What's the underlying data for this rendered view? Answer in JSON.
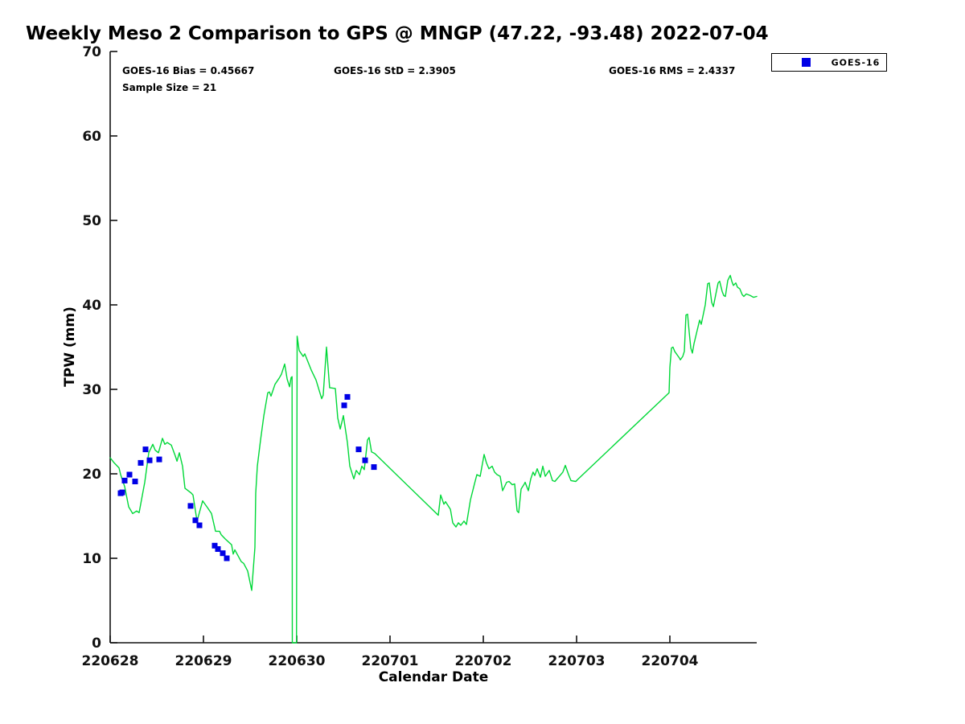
{
  "title": "Weekly Meso 2 Comparison to GPS @ MNGP (47.22, -93.48) 2022-07-04",
  "stats": {
    "bias": "GOES-16 Bias = 0.45667",
    "std": "GOES-16 StD = 2.3905",
    "rms": "GOES-16 RMS = 2.4337",
    "sample": "Sample Size = 21"
  },
  "legend": {
    "label": "GOES-16",
    "marker_color": "#0000e6",
    "position": "top-right"
  },
  "colors": {
    "gps_line": "#00d838",
    "goes16_marker": "#0000e6",
    "axis": "#111111",
    "text": "#000000"
  },
  "chart_data": {
    "type": "line",
    "title": "Weekly Meso 2 Comparison to GPS @ MNGP (47.22, -93.48) 2022-07-04",
    "xlabel": "Calendar Date",
    "ylabel": "TPW (mm)",
    "ylim": [
      0,
      70
    ],
    "yticks": [
      0,
      10,
      20,
      30,
      40,
      50,
      60,
      70
    ],
    "xtick_labels": [
      "220628",
      "220629",
      "220630",
      "220701",
      "220702",
      "220703",
      "220704"
    ],
    "xtick_days": [
      0,
      1,
      2,
      3,
      4,
      5,
      6
    ],
    "xlim_days": [
      0,
      6.931
    ],
    "grid": false,
    "legend_entries": [
      "GOES-16"
    ],
    "series": [
      {
        "name": "GPS TPW",
        "type": "line",
        "color": "#00d838",
        "points": [
          [
            0.0,
            21.9
          ],
          [
            0.043,
            21.3
          ],
          [
            0.095,
            20.7
          ],
          [
            0.112,
            19.9
          ],
          [
            0.155,
            18.5
          ],
          [
            0.198,
            16.1
          ],
          [
            0.241,
            15.3
          ],
          [
            0.284,
            15.6
          ],
          [
            0.31,
            15.4
          ],
          [
            0.371,
            19.0
          ],
          [
            0.414,
            22.5
          ],
          [
            0.457,
            23.5
          ],
          [
            0.483,
            22.8
          ],
          [
            0.517,
            22.5
          ],
          [
            0.56,
            24.2
          ],
          [
            0.586,
            23.5
          ],
          [
            0.612,
            23.7
          ],
          [
            0.655,
            23.4
          ],
          [
            0.698,
            22.1
          ],
          [
            0.716,
            21.5
          ],
          [
            0.741,
            22.5
          ],
          [
            0.776,
            20.9
          ],
          [
            0.802,
            18.3
          ],
          [
            0.871,
            17.7
          ],
          [
            0.888,
            17.5
          ],
          [
            0.931,
            14.4
          ],
          [
            0.991,
            16.8
          ],
          [
            1.043,
            16.0
          ],
          [
            1.086,
            15.3
          ],
          [
            1.129,
            13.2
          ],
          [
            1.172,
            13.2
          ],
          [
            1.19,
            12.8
          ],
          [
            1.233,
            12.3
          ],
          [
            1.302,
            11.6
          ],
          [
            1.319,
            10.5
          ],
          [
            1.336,
            11.0
          ],
          [
            1.405,
            9.6
          ],
          [
            1.431,
            9.4
          ],
          [
            1.474,
            8.5
          ],
          [
            1.517,
            6.2
          ],
          [
            1.552,
            11.3
          ],
          [
            1.56,
            17.7
          ],
          [
            1.578,
            20.9
          ],
          [
            1.612,
            24.0
          ],
          [
            1.647,
            26.9
          ],
          [
            1.69,
            29.6
          ],
          [
            1.707,
            29.7
          ],
          [
            1.724,
            29.2
          ],
          [
            1.767,
            30.6
          ],
          [
            1.81,
            31.3
          ],
          [
            1.836,
            31.8
          ],
          [
            1.871,
            33.0
          ],
          [
            1.897,
            31.2
          ],
          [
            1.923,
            30.3
          ],
          [
            1.94,
            31.4
          ],
          [
            1.95,
            31.5
          ],
          [
            1.953,
            0
          ],
          [
            1.997,
            0
          ],
          [
            2.004,
            36.3
          ],
          [
            2.026,
            34.6
          ],
          [
            2.069,
            33.9
          ],
          [
            2.086,
            34.2
          ],
          [
            2.155,
            32.3
          ],
          [
            2.207,
            31.1
          ],
          [
            2.267,
            28.9
          ],
          [
            2.284,
            29.3
          ],
          [
            2.319,
            35.0
          ],
          [
            2.353,
            30.2
          ],
          [
            2.414,
            30.1
          ],
          [
            2.44,
            26.6
          ],
          [
            2.466,
            25.3
          ],
          [
            2.5,
            26.9
          ],
          [
            2.543,
            23.7
          ],
          [
            2.569,
            20.9
          ],
          [
            2.612,
            19.4
          ],
          [
            2.638,
            20.4
          ],
          [
            2.672,
            19.9
          ],
          [
            2.698,
            20.9
          ],
          [
            2.724,
            20.5
          ],
          [
            2.759,
            24.0
          ],
          [
            2.776,
            24.3
          ],
          [
            2.802,
            22.6
          ],
          [
            2.836,
            22.4
          ],
          [
            3.517,
            15.1
          ],
          [
            3.543,
            17.5
          ],
          [
            3.578,
            16.4
          ],
          [
            3.595,
            16.7
          ],
          [
            3.647,
            15.8
          ],
          [
            3.672,
            14.2
          ],
          [
            3.707,
            13.7
          ],
          [
            3.733,
            14.2
          ],
          [
            3.759,
            13.9
          ],
          [
            3.793,
            14.4
          ],
          [
            3.819,
            14.0
          ],
          [
            3.862,
            16.9
          ],
          [
            3.905,
            18.8
          ],
          [
            3.931,
            19.9
          ],
          [
            3.966,
            19.7
          ],
          [
            4.009,
            22.3
          ],
          [
            4.034,
            21.3
          ],
          [
            4.06,
            20.6
          ],
          [
            4.095,
            20.9
          ],
          [
            4.121,
            20.2
          ],
          [
            4.147,
            19.9
          ],
          [
            4.181,
            19.7
          ],
          [
            4.207,
            18.0
          ],
          [
            4.25,
            19.0
          ],
          [
            4.276,
            19.1
          ],
          [
            4.31,
            18.7
          ],
          [
            4.336,
            18.8
          ],
          [
            4.362,
            15.6
          ],
          [
            4.379,
            15.4
          ],
          [
            4.405,
            18.2
          ],
          [
            4.44,
            18.8
          ],
          [
            4.448,
            19.0
          ],
          [
            4.483,
            18.0
          ],
          [
            4.509,
            19.4
          ],
          [
            4.534,
            20.2
          ],
          [
            4.552,
            19.8
          ],
          [
            4.578,
            20.6
          ],
          [
            4.612,
            19.6
          ],
          [
            4.638,
            20.9
          ],
          [
            4.664,
            19.7
          ],
          [
            4.707,
            20.4
          ],
          [
            4.741,
            19.2
          ],
          [
            4.767,
            19.1
          ],
          [
            4.853,
            20.2
          ],
          [
            4.879,
            21.0
          ],
          [
            4.914,
            19.9
          ],
          [
            4.94,
            19.2
          ],
          [
            4.991,
            19.1
          ],
          [
            5.009,
            19.3
          ],
          [
            5.991,
            29.6
          ],
          [
            6.0,
            32.6
          ],
          [
            6.017,
            34.9
          ],
          [
            6.034,
            35.0
          ],
          [
            6.052,
            34.5
          ],
          [
            6.103,
            33.7
          ],
          [
            6.112,
            33.5
          ],
          [
            6.138,
            33.9
          ],
          [
            6.155,
            34.5
          ],
          [
            6.172,
            38.8
          ],
          [
            6.19,
            38.9
          ],
          [
            6.207,
            36.8
          ],
          [
            6.224,
            34.9
          ],
          [
            6.241,
            34.3
          ],
          [
            6.259,
            35.4
          ],
          [
            6.293,
            37.0
          ],
          [
            6.319,
            38.2
          ],
          [
            6.336,
            37.7
          ],
          [
            6.379,
            40.0
          ],
          [
            6.405,
            42.5
          ],
          [
            6.422,
            42.6
          ],
          [
            6.448,
            40.3
          ],
          [
            6.466,
            39.8
          ],
          [
            6.491,
            41.2
          ],
          [
            6.517,
            42.6
          ],
          [
            6.534,
            42.8
          ],
          [
            6.56,
            41.6
          ],
          [
            6.578,
            41.1
          ],
          [
            6.595,
            41.0
          ],
          [
            6.621,
            42.9
          ],
          [
            6.647,
            43.5
          ],
          [
            6.664,
            42.8
          ],
          [
            6.681,
            42.3
          ],
          [
            6.707,
            42.6
          ],
          [
            6.724,
            42.1
          ],
          [
            6.75,
            41.9
          ],
          [
            6.776,
            41.2
          ],
          [
            6.793,
            41.0
          ],
          [
            6.819,
            41.3
          ],
          [
            6.862,
            41.1
          ],
          [
            6.897,
            40.9
          ],
          [
            6.931,
            41.0
          ]
        ]
      },
      {
        "name": "GOES-16",
        "type": "scatter",
        "color": "#0000e6",
        "points": [
          [
            0.112,
            17.7
          ],
          [
            0.129,
            17.8
          ],
          [
            0.155,
            19.2
          ],
          [
            0.207,
            19.9
          ],
          [
            0.267,
            19.1
          ],
          [
            0.328,
            21.3
          ],
          [
            0.379,
            22.9
          ],
          [
            0.422,
            21.6
          ],
          [
            0.526,
            21.7
          ],
          [
            0.862,
            16.2
          ],
          [
            0.914,
            14.5
          ],
          [
            0.957,
            13.9
          ],
          [
            1.121,
            11.5
          ],
          [
            1.155,
            11.1
          ],
          [
            1.207,
            10.6
          ],
          [
            1.25,
            10.0
          ],
          [
            2.509,
            28.1
          ],
          [
            2.543,
            29.1
          ],
          [
            2.664,
            22.9
          ],
          [
            2.733,
            21.6
          ],
          [
            2.828,
            20.8
          ]
        ]
      }
    ]
  }
}
